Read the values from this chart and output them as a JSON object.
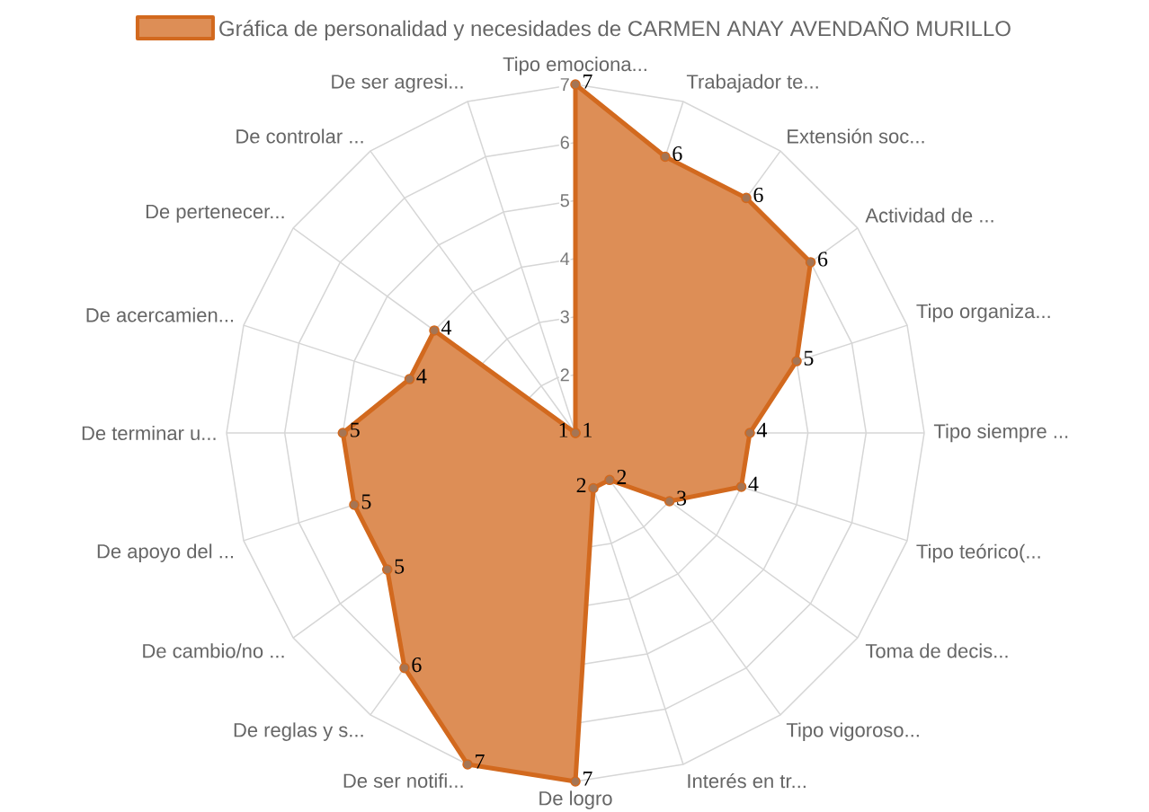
{
  "chart_data": {
    "type": "radar",
    "categories": [
      "Tipo emociona...",
      "Trabajador te...",
      "Extensión soc...",
      "Actividad de ...",
      "Tipo organiza...",
      "Tipo siempre ...",
      "Tipo teórico(...",
      "Toma de decis...",
      "Tipo vigoroso...",
      "Interés en tr...",
      "De logro",
      "De ser notifi...",
      "De reglas y s...",
      "De cambio/no ...",
      "De apoyo del ...",
      "De terminar u...",
      "De acercamien...",
      "De pertenecer...",
      "De controlar ...",
      "De ser agresi..."
    ],
    "series": [
      {
        "name": "Gráfica de personalidad y necesidades de CARMEN ANAY AVENDAÑO MURILLO",
        "color": "#d2691e",
        "values": [
          7,
          6,
          6,
          6,
          5,
          4,
          4,
          3,
          2,
          2,
          7,
          7,
          6,
          5,
          5,
          5,
          4,
          4,
          1,
          1
        ]
      }
    ],
    "ylim": [
      1,
      7
    ],
    "yticks": [
      2,
      3,
      4,
      5,
      6,
      7
    ],
    "grid": true,
    "legend": "top",
    "marker": "circle",
    "data_labels": true
  }
}
